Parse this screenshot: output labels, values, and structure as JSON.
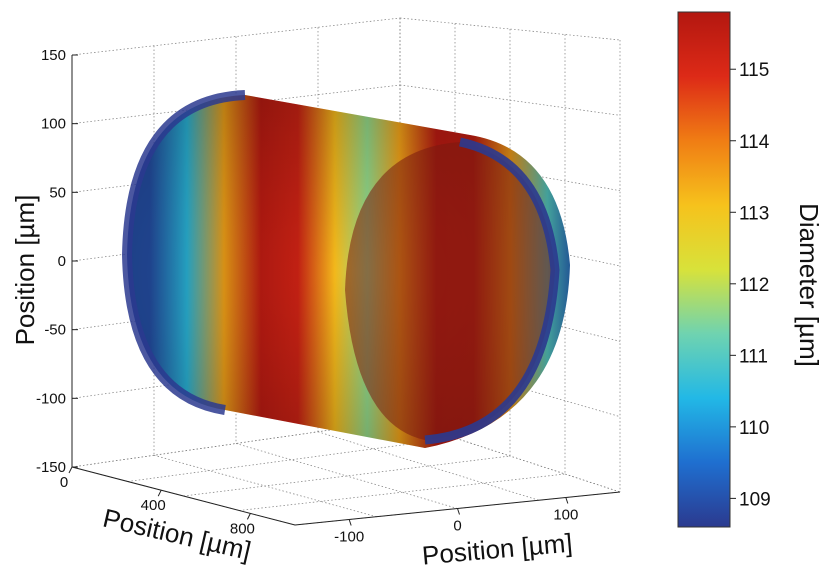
{
  "chart_data": {
    "type": "surface3d",
    "description_of_shape": "hollow cylinder (tube) colored by local diameter",
    "axes": {
      "z": {
        "label": "Position  [µm]",
        "ticks": [
          150,
          100,
          50,
          0,
          -50,
          -100,
          -150
        ]
      },
      "x": {
        "label": "Position  [µm]",
        "ticks": [
          0,
          400,
          800
        ]
      },
      "y": {
        "label": "Position  [µm]",
        "ticks": [
          -100,
          0,
          100
        ]
      }
    },
    "grid": true,
    "colorbar": {
      "label": "Diameter [µm]",
      "ticks": [
        115,
        114,
        113,
        112,
        111,
        110,
        109
      ],
      "range": [
        108.6,
        115.8
      ],
      "colormap": [
        "#2b3a8f",
        "#1f6fd0",
        "#22b8e6",
        "#6fd3b0",
        "#d8e23a",
        "#f6c21c",
        "#f07d14",
        "#dd2a17",
        "#b31710"
      ]
    },
    "diameter_profile_along_length": [
      {
        "position": 0,
        "diameter": 109.0
      },
      {
        "position": 80,
        "diameter": 110.5
      },
      {
        "position": 160,
        "diameter": 113.5
      },
      {
        "position": 240,
        "diameter": 115.6
      },
      {
        "position": 320,
        "diameter": 115.3
      },
      {
        "position": 400,
        "diameter": 113.2
      },
      {
        "position": 470,
        "diameter": 111.6
      },
      {
        "position": 540,
        "diameter": 113.5
      },
      {
        "position": 620,
        "diameter": 115.6
      },
      {
        "position": 700,
        "diameter": 115.5
      },
      {
        "position": 780,
        "diameter": 113.6
      },
      {
        "position": 860,
        "diameter": 111.0
      },
      {
        "position": 920,
        "diameter": 109.2
      }
    ]
  }
}
